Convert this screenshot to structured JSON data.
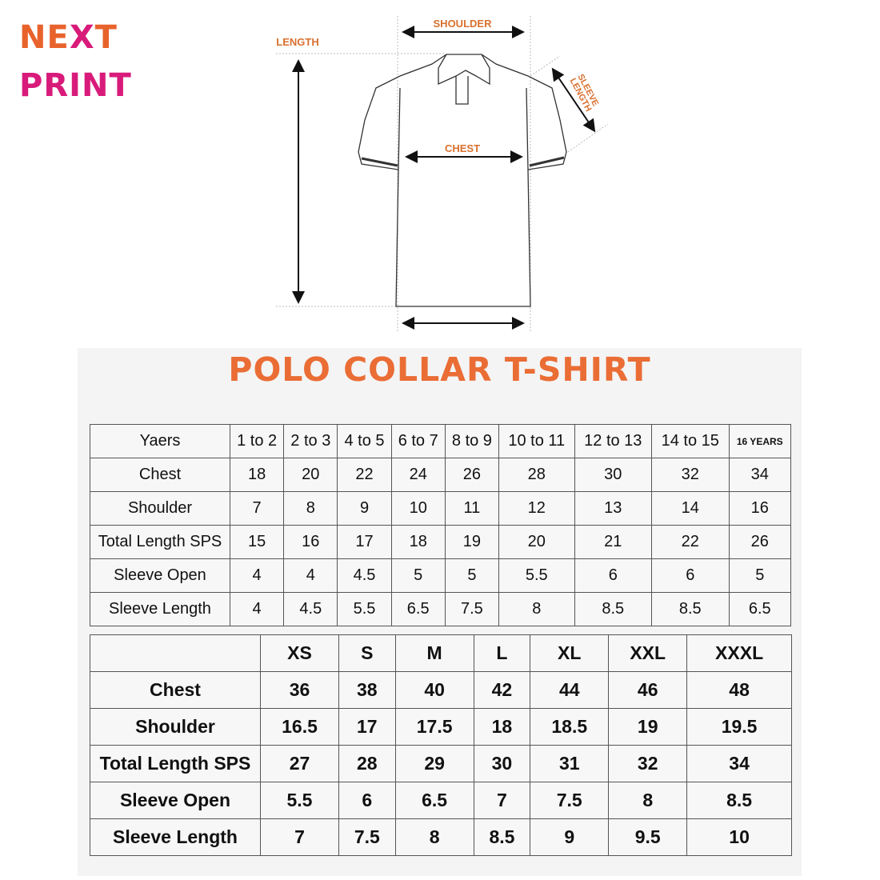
{
  "logo": {
    "line1_a": "NE",
    "line1_x": "X",
    "line1_b": "T",
    "line2": "PRINT",
    "colors": {
      "orange": "#e8632c",
      "magenta": "#d81b7a"
    }
  },
  "diagram": {
    "labels": {
      "shoulder": "SHOULDER",
      "length": "LENGTH",
      "sleeve_length_1": "SLEEVE",
      "sleeve_length_2": "LENGTH",
      "chest": "CHEST"
    }
  },
  "title": "POLO COLLAR T-SHIRT",
  "accent_color": "#ea6d35",
  "kids_table": {
    "header": [
      "Yaers",
      "1 to 2",
      "2 to 3",
      "4 to 5",
      "6 to 7",
      "8 to 9",
      "10 to 11",
      "12 to 13",
      "14 to 15",
      "16 YEARS"
    ],
    "rows": [
      [
        "Chest",
        "18",
        "20",
        "22",
        "24",
        "26",
        "28",
        "30",
        "32",
        "34"
      ],
      [
        "Shoulder",
        "7",
        "8",
        "9",
        "10",
        "11",
        "12",
        "13",
        "14",
        "16"
      ],
      [
        "Total Length SPS",
        "15",
        "16",
        "17",
        "18",
        "19",
        "20",
        "21",
        "22",
        "26"
      ],
      [
        "Sleeve Open",
        "4",
        "4",
        "4.5",
        "5",
        "5",
        "5.5",
        "6",
        "6",
        "5"
      ],
      [
        "Sleeve Length",
        "4",
        "4.5",
        "5.5",
        "6.5",
        "7.5",
        "8",
        "8.5",
        "8.5",
        "6.5"
      ]
    ]
  },
  "adult_table": {
    "header": [
      "",
      "XS",
      "S",
      "M",
      "L",
      "XL",
      "XXL",
      "XXXL"
    ],
    "rows": [
      [
        "Chest",
        "36",
        "38",
        "40",
        "42",
        "44",
        "46",
        "48"
      ],
      [
        "Shoulder",
        "16.5",
        "17",
        "17.5",
        "18",
        "18.5",
        "19",
        "19.5"
      ],
      [
        "Total Length SPS",
        "27",
        "28",
        "29",
        "30",
        "31",
        "32",
        "34"
      ],
      [
        "Sleeve Open",
        "5.5",
        "6",
        "6.5",
        "7",
        "7.5",
        "8",
        "8.5"
      ],
      [
        "Sleeve Length",
        "7",
        "7.5",
        "8",
        "8.5",
        "9",
        "9.5",
        "10"
      ]
    ]
  }
}
